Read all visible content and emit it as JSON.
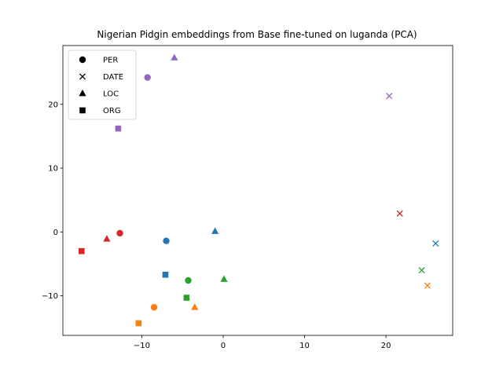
{
  "chart_data": {
    "type": "scatter",
    "title": "Nigerian Pidgin embeddings from Base fine-tuned on luganda (PCA)",
    "xlabel": "",
    "ylabel": "",
    "xlim": [
      -19.7,
      28.2
    ],
    "ylim": [
      -16.2,
      29.2
    ],
    "xticks": [
      -10,
      0,
      10,
      20
    ],
    "yticks": [
      -10,
      0,
      10,
      20
    ],
    "xtick_labels": [
      "−10",
      "0",
      "10",
      "20"
    ],
    "ytick_labels": [
      "−10",
      "0",
      "10",
      "20"
    ],
    "grid": false,
    "legend": {
      "placement": "top-left",
      "entries": [
        {
          "label": "PER",
          "marker": "circle"
        },
        {
          "label": "DATE",
          "marker": "x"
        },
        {
          "label": "LOC",
          "marker": "triangle"
        },
        {
          "label": "ORG",
          "marker": "square"
        }
      ]
    },
    "colors": {
      "blue": "#1f77b4",
      "orange": "#ff7f0e",
      "green": "#2ca02c",
      "red": "#d62728",
      "purple": "#9467bd"
    },
    "points": [
      {
        "x": -9.3,
        "y": 24.2,
        "marker": "circle",
        "color": "purple"
      },
      {
        "x": -12.7,
        "y": -0.2,
        "marker": "circle",
        "color": "red"
      },
      {
        "x": -7.0,
        "y": -1.4,
        "marker": "circle",
        "color": "blue"
      },
      {
        "x": -4.3,
        "y": -7.6,
        "marker": "circle",
        "color": "green"
      },
      {
        "x": -8.5,
        "y": -11.8,
        "marker": "circle",
        "color": "orange"
      },
      {
        "x": 20.4,
        "y": 21.3,
        "marker": "x",
        "color": "purple"
      },
      {
        "x": 21.7,
        "y": 2.9,
        "marker": "x",
        "color": "red"
      },
      {
        "x": 26.1,
        "y": -1.8,
        "marker": "x",
        "color": "blue"
      },
      {
        "x": 24.4,
        "y": -6.0,
        "marker": "x",
        "color": "green"
      },
      {
        "x": 25.1,
        "y": -8.4,
        "marker": "x",
        "color": "orange"
      },
      {
        "x": -6.0,
        "y": 27.3,
        "marker": "triangle",
        "color": "purple"
      },
      {
        "x": -14.3,
        "y": -1.1,
        "marker": "triangle",
        "color": "red"
      },
      {
        "x": -1.0,
        "y": 0.1,
        "marker": "triangle",
        "color": "blue"
      },
      {
        "x": 0.1,
        "y": -7.4,
        "marker": "triangle",
        "color": "green"
      },
      {
        "x": -3.5,
        "y": -11.8,
        "marker": "triangle",
        "color": "orange"
      },
      {
        "x": -12.9,
        "y": 16.2,
        "marker": "square",
        "color": "purple"
      },
      {
        "x": -17.4,
        "y": -3.0,
        "marker": "square",
        "color": "red"
      },
      {
        "x": -7.1,
        "y": -6.7,
        "marker": "square",
        "color": "blue"
      },
      {
        "x": -4.5,
        "y": -10.3,
        "marker": "square",
        "color": "green"
      },
      {
        "x": -10.4,
        "y": -14.3,
        "marker": "square",
        "color": "orange"
      }
    ]
  }
}
